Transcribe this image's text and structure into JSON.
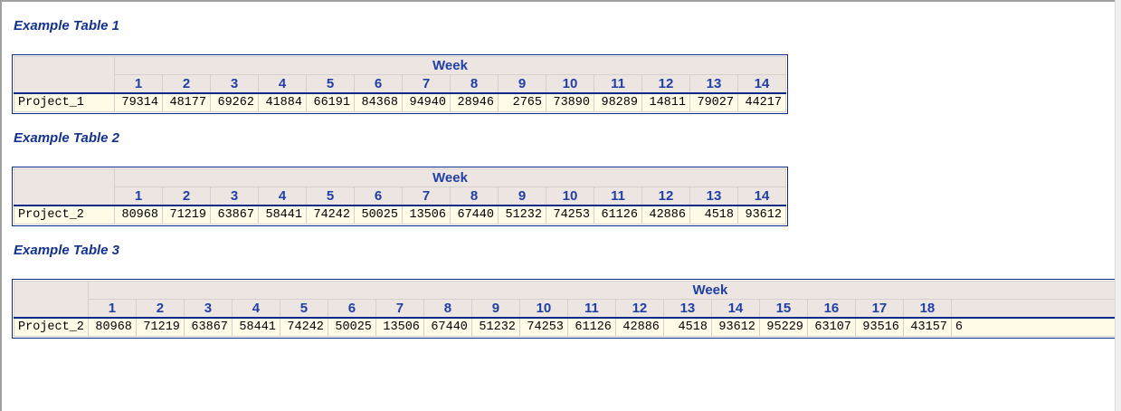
{
  "tables": [
    {
      "title": "Example Table 1",
      "spanner": "Week",
      "weeks": [
        "1",
        "2",
        "3",
        "4",
        "5",
        "6",
        "7",
        "8",
        "9",
        "10",
        "11",
        "12",
        "13",
        "14"
      ],
      "row_label": "Project_1",
      "values": [
        "79314",
        "48177",
        "69262",
        "41884",
        "66191",
        "84368",
        "94940",
        "28946",
        "2765",
        "73890",
        "98289",
        "14811",
        "79027",
        "44217"
      ]
    },
    {
      "title": "Example Table 2",
      "spanner": "Week",
      "weeks": [
        "1",
        "2",
        "3",
        "4",
        "5",
        "6",
        "7",
        "8",
        "9",
        "10",
        "11",
        "12",
        "13",
        "14"
      ],
      "row_label": "Project_2",
      "values": [
        "80968",
        "71219",
        "63867",
        "58441",
        "74242",
        "50025",
        "13506",
        "67440",
        "51232",
        "74253",
        "61126",
        "42886",
        "4518",
        "93612"
      ]
    },
    {
      "title": "Example Table 3",
      "spanner": "Week",
      "weeks": [
        "1",
        "2",
        "3",
        "4",
        "5",
        "6",
        "7",
        "8",
        "9",
        "10",
        "11",
        "12",
        "13",
        "14",
        "15",
        "16",
        "17",
        "18",
        ""
      ],
      "row_label": "Project_2",
      "values": [
        "80968",
        "71219",
        "63867",
        "58441",
        "74242",
        "50025",
        "13506",
        "67440",
        "51232",
        "74253",
        "61126",
        "42886",
        "4518",
        "93612",
        "95229",
        "63107",
        "93516",
        "43157",
        "6"
      ]
    }
  ]
}
